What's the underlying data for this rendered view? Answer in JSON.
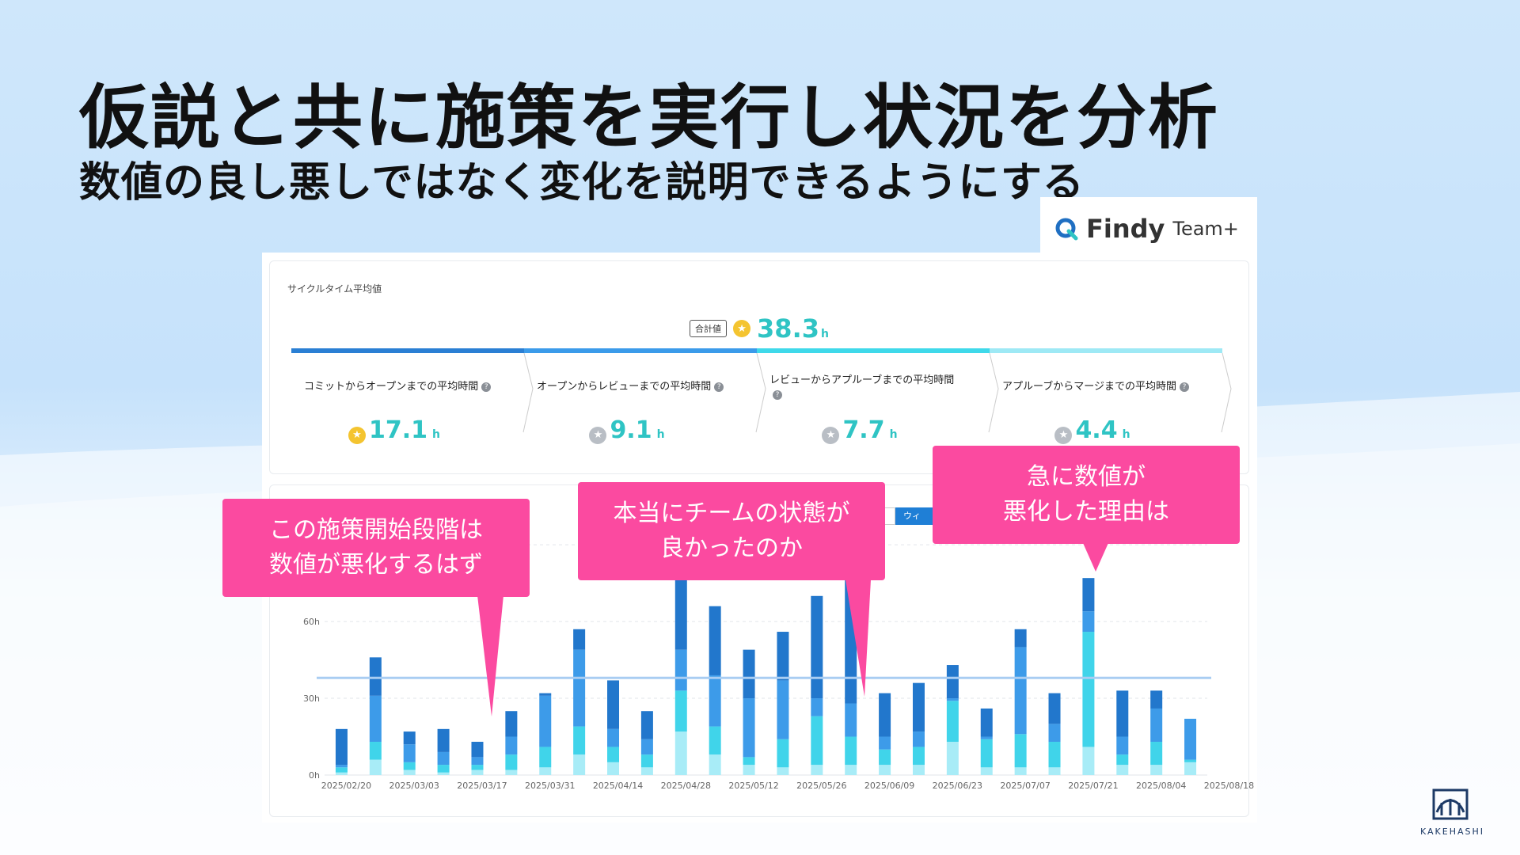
{
  "title": "仮説と共に施策を実行し状況を分析",
  "subtitle": "数値の良し悪しではなく変化を説明できるようにする",
  "brand": {
    "name": "Findy",
    "product": "Team+"
  },
  "summary": {
    "heading": "サイクルタイム平均値",
    "total_tag": "合計値",
    "total_value": "38.3",
    "unit": "h",
    "stages": [
      {
        "label": "コミットからオープンまでの平均時間",
        "value": "17.1",
        "badge": "gold"
      },
      {
        "label": "オープンからレビューまでの平均時間",
        "value": "9.1",
        "badge": "silver"
      },
      {
        "label": "レビューからアプルーブまでの平均時間",
        "value": "7.7",
        "badge": "silver"
      },
      {
        "label": "アプルーブからマージまでの平均時間",
        "value": "4.4",
        "badge": "silver"
      }
    ],
    "colors": [
      "#2a7fd4",
      "#3b9bea",
      "#3fd9ea",
      "#9ee9f5"
    ]
  },
  "toggle_label": "ウィ",
  "callouts": [
    {
      "line1": "この施策開始段階は",
      "line2": "数値が悪化するはず"
    },
    {
      "line1": "本当にチームの状態が",
      "line2": "良かったのか"
    },
    {
      "line1": "急に数値が",
      "line2": "悪化した理由は"
    }
  ],
  "logo_text": "KAKEHASHI",
  "chart_data": {
    "type": "bar",
    "stacked": true,
    "y_tick_labels": [
      "0h",
      "30h",
      "60h"
    ],
    "ylim": [
      0,
      95
    ],
    "reference_line": 38,
    "x_tick_labels": [
      "2025/02/20",
      "2025/03/03",
      "2025/03/17",
      "2025/03/31",
      "2025/04/14",
      "2025/04/28",
      "2025/05/12",
      "2025/05/26",
      "2025/06/09",
      "2025/06/23",
      "2025/07/07",
      "2025/07/21",
      "2025/08/04",
      "2025/08/18"
    ],
    "series_colors": [
      "#a8ecf7",
      "#40d4ea",
      "#3d9be9",
      "#2277cc"
    ],
    "bars": [
      [
        1,
        2,
        1,
        14
      ],
      [
        6,
        7,
        18,
        15
      ],
      [
        2,
        3,
        7,
        5
      ],
      [
        1,
        3,
        5,
        9
      ],
      [
        2,
        2,
        3,
        6
      ],
      [
        2,
        6,
        7,
        10
      ],
      [
        3,
        8,
        20,
        1
      ],
      [
        8,
        11,
        30,
        8
      ],
      [
        5,
        6,
        7,
        19
      ],
      [
        3,
        5,
        6,
        11
      ],
      [
        17,
        16,
        16,
        28
      ],
      [
        8,
        11,
        20,
        27
      ],
      [
        4,
        3,
        23,
        19
      ],
      [
        3,
        11,
        23,
        19
      ],
      [
        4,
        19,
        7,
        40
      ],
      [
        4,
        11,
        13,
        67
      ],
      [
        4,
        6,
        5,
        17
      ],
      [
        4,
        7,
        6,
        19
      ],
      [
        13,
        16,
        1,
        13
      ],
      [
        3,
        11,
        1,
        11
      ],
      [
        3,
        13,
        34,
        7
      ],
      [
        3,
        10,
        7,
        12
      ],
      [
        11,
        45,
        8,
        13
      ],
      [
        4,
        4,
        7,
        18
      ],
      [
        4,
        9,
        13,
        7
      ],
      [
        5,
        1,
        16,
        0
      ]
    ]
  }
}
